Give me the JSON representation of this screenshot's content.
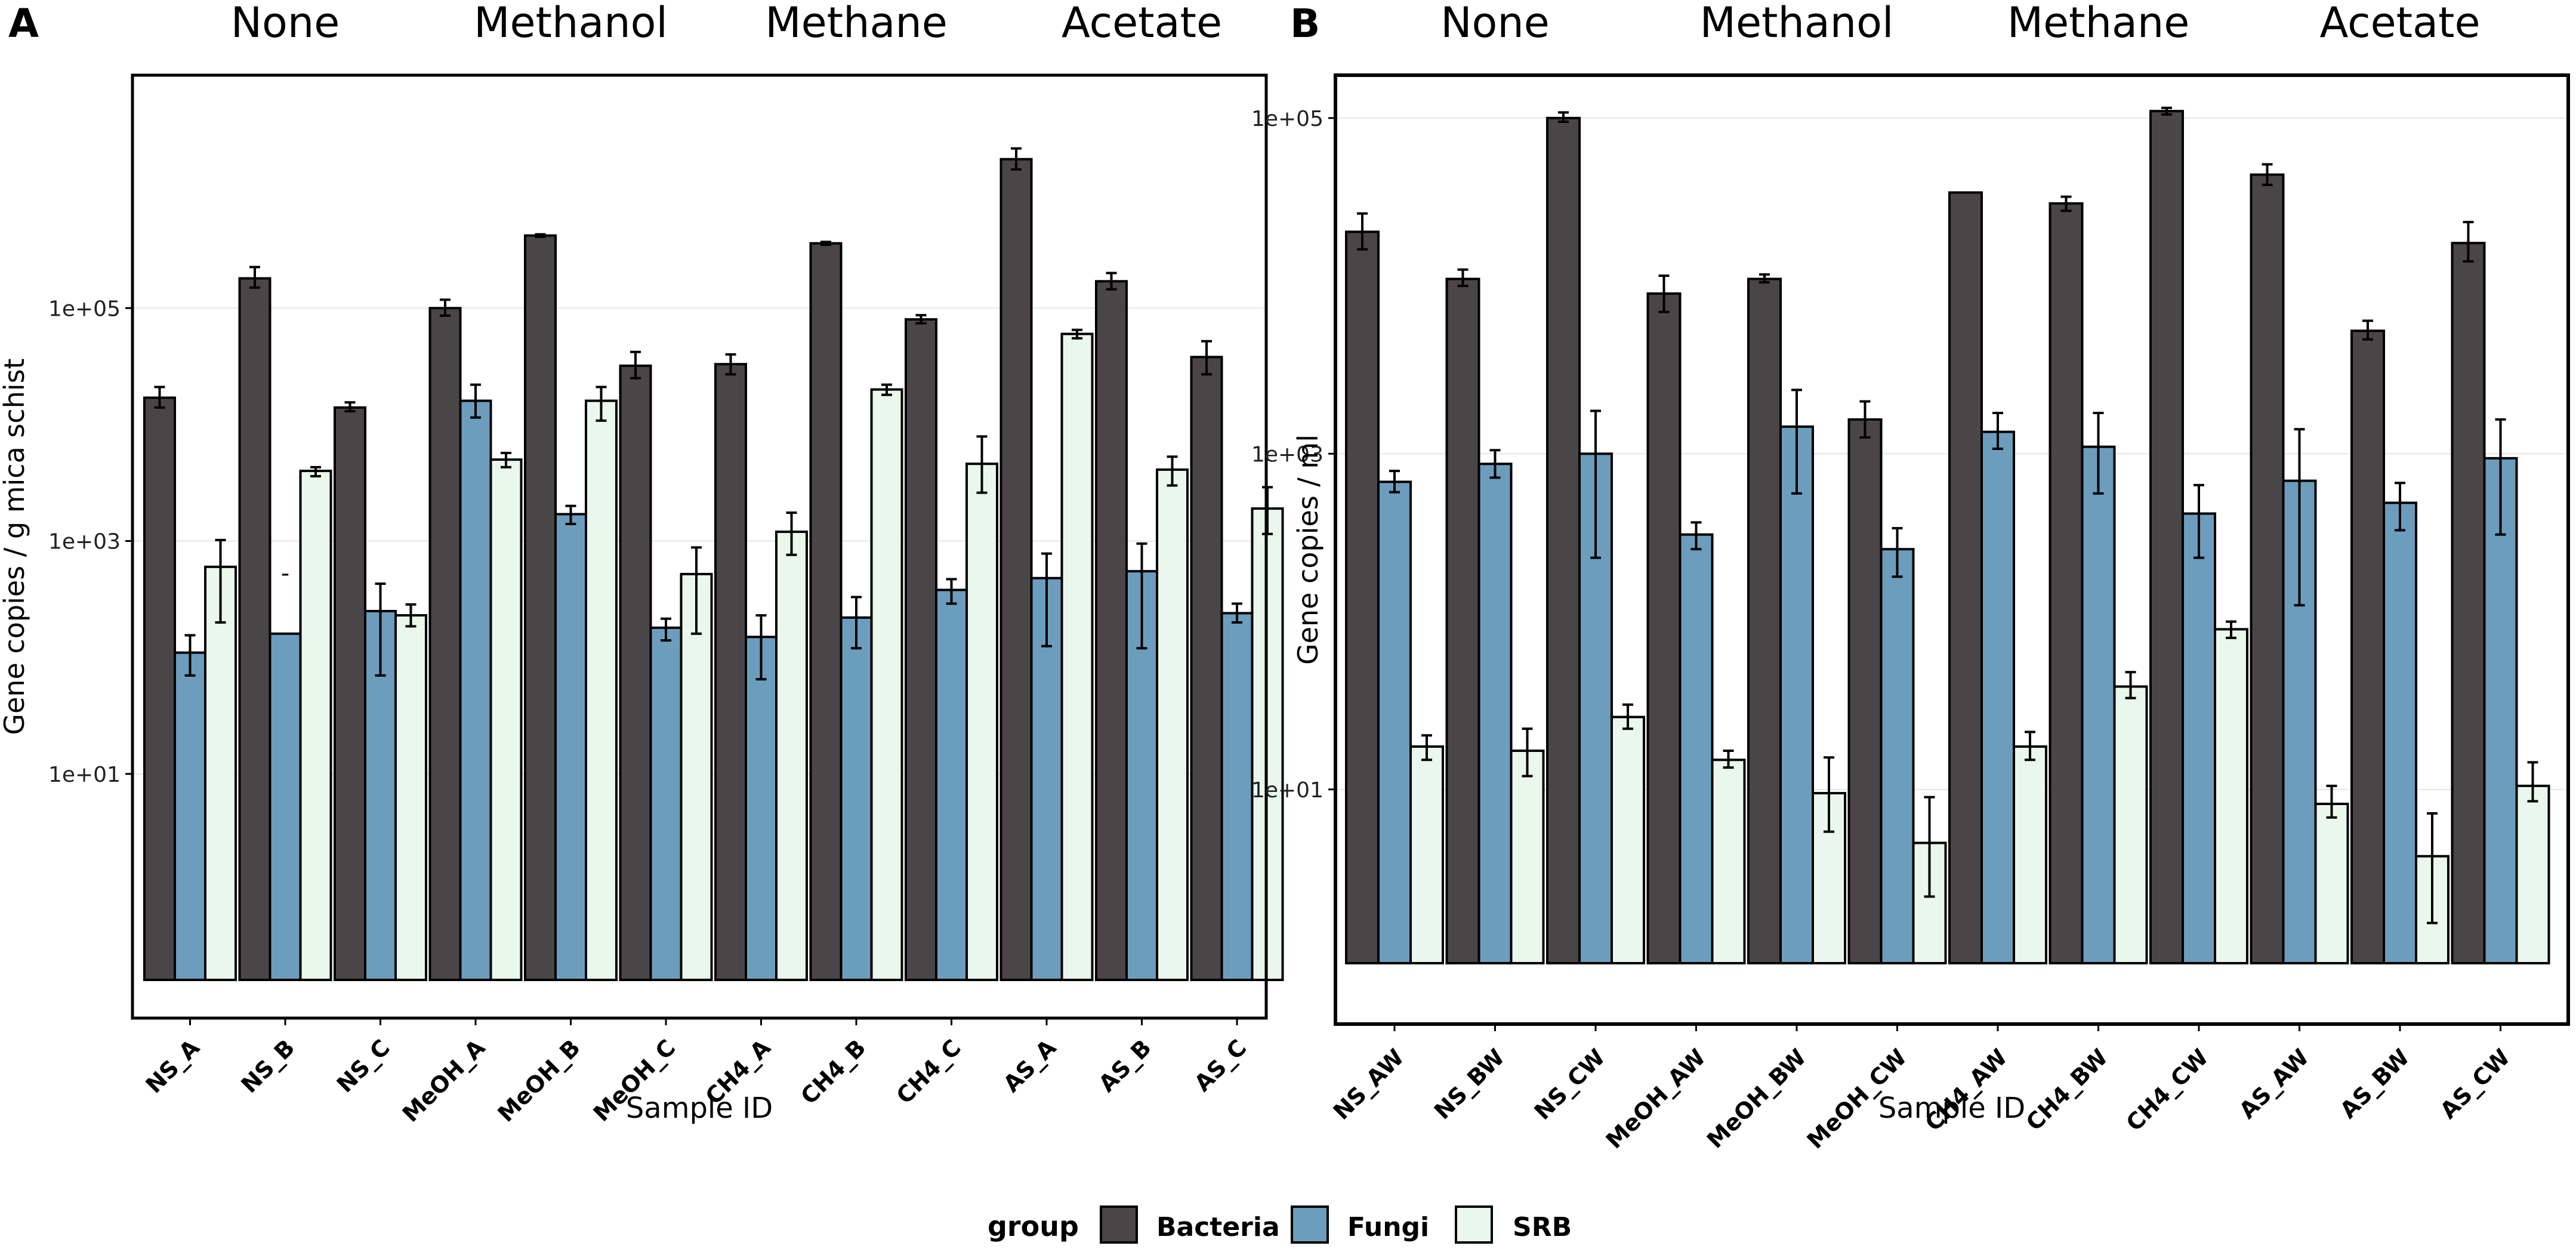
{
  "colors": {
    "bacteria": "#4a4546",
    "fungi": "#6d9dbd",
    "srb": "#eaf7ec",
    "outline": "#000000",
    "grid": "#e6e6e6"
  },
  "legend": {
    "title": "group",
    "items": [
      {
        "label": "Bacteria",
        "color": "#4a4546"
      },
      {
        "label": "Fungi",
        "color": "#6d9dbd"
      },
      {
        "label": "SRB",
        "color": "#eaf7ec"
      }
    ]
  },
  "chart_data": [
    {
      "type": "bar",
      "panel_label": "A",
      "title": "",
      "xlabel": "Sample ID",
      "ylabel": "Gene copies / g mica schist",
      "yscale": "log10",
      "ylim": [
        0.08,
        10000000
      ],
      "yticks": [
        10,
        1000,
        100000
      ],
      "ytick_labels": [
        "1e+01",
        "1e+03",
        "1e+05"
      ],
      "treatments": [
        {
          "label": "None",
          "first": 0,
          "last": 2
        },
        {
          "label": "Methanol",
          "first": 3,
          "last": 5
        },
        {
          "label": "Methane",
          "first": 6,
          "last": 8
        },
        {
          "label": "Acetate",
          "first": 9,
          "last": 11
        }
      ],
      "categories": [
        "NS_A",
        "NS_B",
        "NS_C",
        "MeOH_A",
        "MeOH_B",
        "MeOH_C",
        "CH4_A",
        "CH4_B",
        "CH4_C",
        "AS_A",
        "AS_B",
        "AS_C"
      ],
      "series": [
        {
          "name": "Bacteria",
          "values": [
            17000,
            180000,
            14000,
            100000,
            420000,
            32000,
            33000,
            360000,
            80000,
            1900000,
            170000,
            38000
          ],
          "err_low": [
            14000,
            150000,
            13000,
            86000,
            410000,
            25000,
            27000,
            350000,
            74000,
            1550000,
            145000,
            27000
          ],
          "err_high": [
            21000,
            225000,
            15500,
            118000,
            430000,
            42000,
            40000,
            370000,
            87000,
            2350000,
            200000,
            52000
          ]
        },
        {
          "name": "Fungi",
          "values": [
            110,
            160,
            250,
            16000,
            1700,
            180,
            150,
            220,
            380,
            480,
            550,
            240
          ],
          "err_low": [
            70,
            160,
            70,
            11500,
            1400,
            140,
            65,
            120,
            290,
            125,
            120,
            200
          ],
          "err_high": [
            155,
            160,
            430,
            22000,
            2000,
            215,
            230,
            330,
            470,
            780,
            950,
            290
          ]
        },
        {
          "name": "SRB",
          "values": [
            600,
            4000,
            230,
            5000,
            16000,
            520,
            1200,
            20000,
            4600,
            60000,
            4100,
            1900
          ],
          "err_low": [
            200,
            3600,
            185,
            4300,
            10800,
            160,
            760,
            18000,
            2600,
            55000,
            3000,
            1150
          ],
          "err_high": [
            1020,
            4300,
            285,
            5700,
            21000,
            880,
            1750,
            22000,
            7900,
            65000,
            5300,
            2900
          ]
        }
      ],
      "annotations": [
        {
          "text": "-",
          "category": "NS_B",
          "value": 450
        }
      ]
    },
    {
      "type": "bar",
      "panel_label": "B",
      "title": "",
      "xlabel": "Sample ID",
      "ylabel": "Gene copies / ml",
      "yscale": "log10",
      "ylim": [
        0.4,
        180000
      ],
      "yticks": [
        10,
        1000,
        100000
      ],
      "ytick_labels": [
        "1e+01",
        "1e+03",
        "1e+05"
      ],
      "treatments": [
        {
          "label": "None",
          "first": 0,
          "last": 2
        },
        {
          "label": "Methanol",
          "first": 3,
          "last": 5
        },
        {
          "label": "Methane",
          "first": 6,
          "last": 8
        },
        {
          "label": "Acetate",
          "first": 9,
          "last": 11
        }
      ],
      "categories": [
        "NS_AW",
        "NS_BW",
        "NS_CW",
        "MeOH_AW",
        "MeOH_BW",
        "MeOH_CW",
        "CH4_AW",
        "CH4_BW",
        "CH4_CW",
        "AS_AW",
        "AS_BW",
        "AS_CW"
      ],
      "series": [
        {
          "name": "Bacteria",
          "values": [
            21000,
            11000,
            100000,
            9000,
            11000,
            1600,
            36000,
            31000,
            110000,
            46000,
            5400,
            18000
          ],
          "err_low": [
            16500,
            10000,
            95000,
            7000,
            10500,
            1250,
            36000,
            28000,
            105000,
            40000,
            4800,
            14000
          ],
          "err_high": [
            27000,
            12500,
            108000,
            11500,
            11700,
            2050,
            36000,
            34000,
            115000,
            53000,
            6200,
            24000
          ]
        },
        {
          "name": "Fungi",
          "values": [
            680,
            870,
            1000,
            330,
            1450,
            270,
            1350,
            1100,
            440,
            690,
            510,
            940
          ],
          "err_low": [
            590,
            720,
            240,
            270,
            580,
            185,
            1070,
            580,
            240,
            125,
            350,
            330
          ],
          "err_high": [
            790,
            1050,
            1800,
            390,
            2400,
            360,
            1750,
            1750,
            650,
            1400,
            670,
            1600
          ]
        },
        {
          "name": "SRB",
          "values": [
            18,
            17,
            27,
            15,
            9.5,
            4.8,
            18,
            41,
            90,
            8.2,
            4,
            10.5
          ],
          "err_low": [
            15,
            12,
            23,
            13.5,
            5.6,
            2.3,
            15,
            35,
            80,
            6.8,
            1.6,
            8.5
          ],
          "err_high": [
            21,
            23,
            32,
            17,
            15.5,
            9,
            22,
            50,
            100,
            10.5,
            7.2,
            14.5
          ]
        }
      ],
      "annotations": []
    }
  ]
}
